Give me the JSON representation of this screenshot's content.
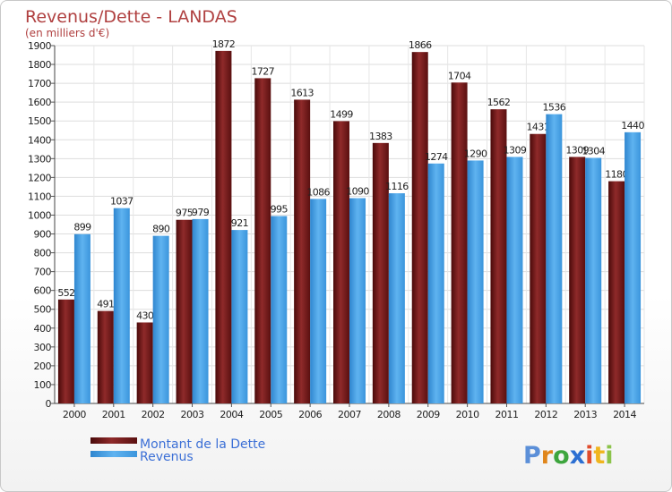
{
  "chart_data": {
    "type": "bar",
    "title": "Revenus/Dette - LANDAS",
    "subtitle": "(en milliers d'€)",
    "categories": [
      "2000",
      "2001",
      "2002",
      "2003",
      "2004",
      "2005",
      "2006",
      "2007",
      "2008",
      "2009",
      "2010",
      "2011",
      "2012",
      "2013",
      "2014"
    ],
    "series": [
      {
        "name": "Montant de la Dette",
        "color": "#7a1c1c",
        "values": [
          552,
          491,
          430,
          975,
          1872,
          1727,
          1613,
          1499,
          1383,
          1866,
          1704,
          1562,
          1431,
          1309,
          1180
        ],
        "labels": [
          "552",
          "491",
          "430",
          "975",
          "1872",
          "1727",
          "1613",
          "1499",
          "1383",
          "1866",
          "1704",
          "1562",
          "1431",
          "1309",
          "1180"
        ]
      },
      {
        "name": "Revenus",
        "color": "#4aa3e6",
        "values": [
          899,
          1037,
          890,
          979,
          921,
          995,
          1086,
          1090,
          1116,
          1274,
          1290,
          1309,
          1536,
          1304,
          1440
        ],
        "labels": [
          "899",
          "1037",
          "890",
          "979",
          "921",
          "995",
          "1086",
          "1090",
          "1116",
          "1274",
          "1290",
          "1309",
          "1536",
          "1304",
          "1440"
        ]
      }
    ],
    "ylim": [
      0,
      1900
    ],
    "ytick_step": 100,
    "grid": true,
    "legend_position": "bottom-left"
  },
  "logo": {
    "letters": [
      "P",
      "r",
      "o",
      "x",
      "i",
      "t",
      "i"
    ],
    "colors": [
      "#5b8fd8",
      "#e0861b",
      "#3da53d",
      "#2c6fd2",
      "#e04c2c",
      "#f0b51e",
      "#8bc34a"
    ]
  }
}
